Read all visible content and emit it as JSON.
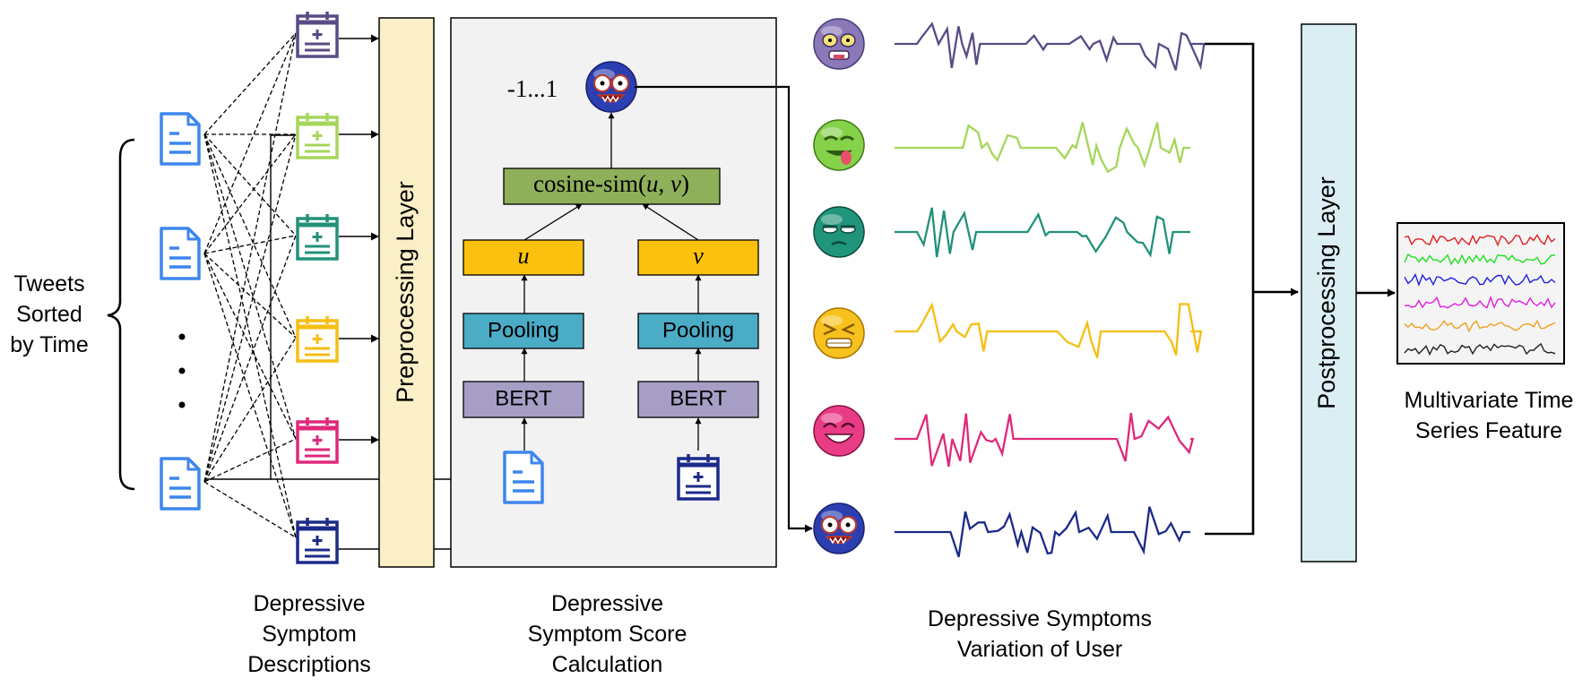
{
  "left_label": {
    "lines": [
      "Tweets",
      "Sorted",
      "by Time"
    ]
  },
  "dots": "•",
  "descriptions_label": {
    "lines": [
      "Depressive",
      "Symptom",
      "Descriptions"
    ]
  },
  "preprocessing_label": "Preprocessing Layer",
  "score_label": {
    "lines": [
      "Depressive",
      "Symptom Score",
      "Calculation"
    ]
  },
  "score_range": "-1...1",
  "cosine": {
    "prefix": "cosine-sim(",
    "u": "u",
    "comma": ", ",
    "v": "v",
    "suffix": ")"
  },
  "u_label": "u",
  "v_label": "v",
  "pooling_label": "Pooling",
  "bert_label": "BERT",
  "variation_label": {
    "lines": [
      "Depressive Symptoms",
      "Variation of User"
    ]
  },
  "postprocessing_label": "Postprocessing Layer",
  "output_label": {
    "lines": [
      "Multivariate Time",
      "Series Feature"
    ]
  },
  "colors": {
    "purple": "#5a4a86",
    "lightgreen": "#a5d65a",
    "teal": "#22917a",
    "yellow": "#f5be12",
    "pink": "#e0287a",
    "navy": "#1c2a8a",
    "tweet_blue": "#3d86ee",
    "preprocessing_fill": "#fbefc8",
    "module_fill": "#f2f2f2",
    "cosine_fill": "#8eb05a",
    "uv_fill": "#fcc10e",
    "pooling_fill": "#4bacc6",
    "bert_fill": "#a79ec6",
    "postprocessing_fill": "#daeef3"
  },
  "symptom_icons": [
    "purple-calendar-icon",
    "lightgreen-calendar-icon",
    "teal-calendar-icon",
    "yellow-calendar-icon",
    "pink-calendar-icon",
    "navy-calendar-icon"
  ],
  "emoji_icons": [
    "purple-zombie-emoji-icon",
    "green-sick-emoji-icon",
    "teal-annoyed-emoji-icon",
    "yellow-grimace-emoji-icon",
    "pink-laughing-emoji-icon",
    "navy-scared-emoji-icon"
  ]
}
